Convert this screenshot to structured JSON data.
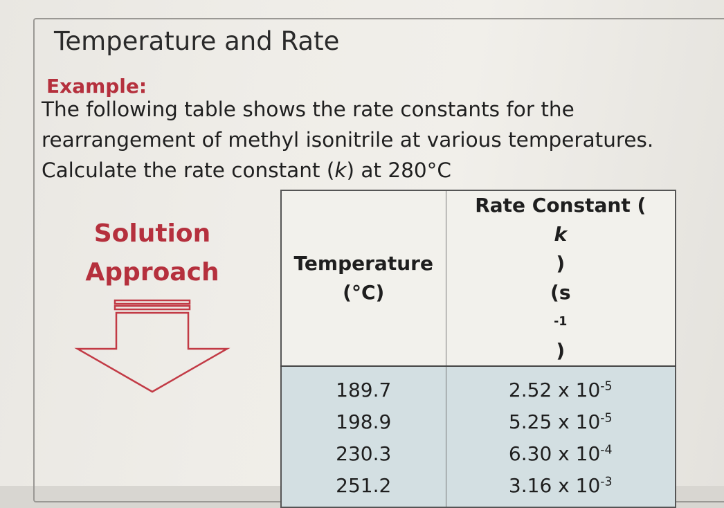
{
  "title": "Temperature and Rate",
  "example_label": "Example:",
  "problem": {
    "line1": "The following table shows the rate constants for the",
    "line2": "rearrangement of methyl isonitrile at various temperatures.",
    "line3_prefix": "Calculate the rate constant (",
    "line3_var": "k",
    "line3_suffix": ") at 280°C"
  },
  "solution": {
    "line1": "Solution",
    "line2": "Approach",
    "icon": "down-arrow-icon"
  },
  "table": {
    "header_temp_line1": "Temperature",
    "header_temp_line2": "(°C)",
    "header_rate_prefix": "Rate Constant (",
    "header_rate_var": "k",
    "header_rate_suffix": ")",
    "header_rate_unit_base": "(s",
    "header_rate_unit_exp": "-1",
    "header_rate_unit_close": ")",
    "rows": [
      {
        "temp": "189.7",
        "mantissa": "2.52 x 10",
        "exp": "-5"
      },
      {
        "temp": "198.9",
        "mantissa": "5.25 x 10",
        "exp": "-5"
      },
      {
        "temp": "230.3",
        "mantissa": "6.30 x 10",
        "exp": "-4"
      },
      {
        "temp": "251.2",
        "mantissa": "3.16 x 10",
        "exp": "-3"
      }
    ]
  },
  "colors": {
    "accent_red": "#b5303d",
    "table_fill": "#d3dfe2"
  }
}
